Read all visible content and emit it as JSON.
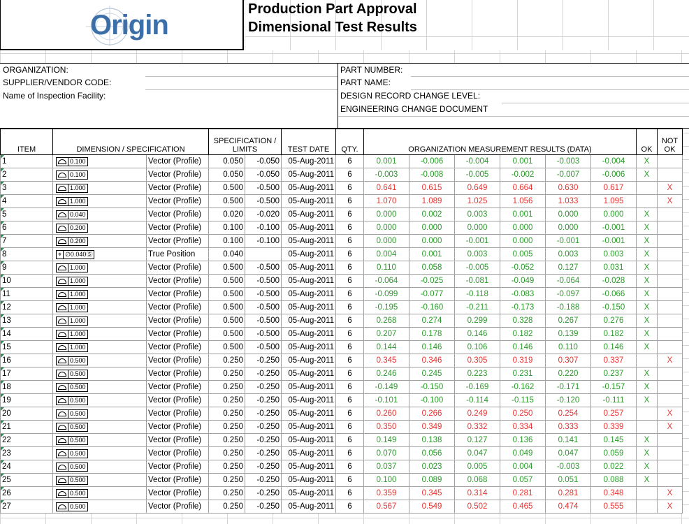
{
  "header": {
    "logo_text": "Origin",
    "title_line1": "Production Part Approval",
    "title_line2": "Dimensional Test Results"
  },
  "info": {
    "organization": "ORGANIZATION:",
    "supplier_code": "SUPPLIER/VENDOR CODE:",
    "inspection_facility": "Name of Inspection Facility:",
    "part_number": "PART NUMBER:",
    "part_name": "PART NAME:",
    "design_record": "DESIGN RECORD CHANGE LEVEL:",
    "eng_change": "ENGINEERING CHANGE DOCUMENT"
  },
  "columns": {
    "item": "ITEM",
    "dimension": "DIMENSION / SPECIFICATION",
    "spec_limits_1": "SPECIFICATION /",
    "spec_limits_2": "LIMITS",
    "test_date": "TEST DATE",
    "qty": "QTY.",
    "results": "ORGANIZATION MEASUREMENT RESULTS (DATA)",
    "ok": "OK",
    "not_ok_1": "NOT",
    "not_ok_2": "OK"
  },
  "colors": {
    "pass": "#2a9a2a",
    "fail": "#e8322f"
  },
  "rows": [
    {
      "item": "1",
      "tol": "0.100",
      "type": "profile",
      "desc": "Vector (Profile)",
      "upper": "0.050",
      "lower": "-0.050",
      "date": "05-Aug-2011",
      "qty": "6",
      "data": [
        "0.001",
        "-0.006",
        "-0.004",
        "0.001",
        "-0.003",
        "-0.004"
      ],
      "pass": true
    },
    {
      "item": "2",
      "tol": "0.100",
      "type": "profile",
      "desc": "Vector (Profile)",
      "upper": "0.050",
      "lower": "-0.050",
      "date": "05-Aug-2011",
      "qty": "6",
      "data": [
        "-0.003",
        "-0.008",
        "-0.005",
        "-0.002",
        "-0.007",
        "-0.006"
      ],
      "pass": true
    },
    {
      "item": "3",
      "tol": "1.000",
      "type": "profile",
      "desc": "Vector (Profile)",
      "upper": "0.500",
      "lower": "-0.500",
      "date": "05-Aug-2011",
      "qty": "6",
      "data": [
        "0.641",
        "0.615",
        "0.649",
        "0.664",
        "0.630",
        "0.617"
      ],
      "pass": false
    },
    {
      "item": "4",
      "tol": "1.000",
      "type": "profile",
      "desc": "Vector (Profile)",
      "upper": "0.500",
      "lower": "-0.500",
      "date": "05-Aug-2011",
      "qty": "6",
      "data": [
        "1.070",
        "1.089",
        "1.025",
        "1.056",
        "1.033",
        "1.095"
      ],
      "pass": false
    },
    {
      "item": "5",
      "tol": "0.040",
      "type": "profile",
      "desc": "Vector (Profile)",
      "upper": "0.020",
      "lower": "-0.020",
      "date": "05-Aug-2011",
      "qty": "6",
      "data": [
        "0.000",
        "0.002",
        "0.003",
        "0.001",
        "0.000",
        "0.000"
      ],
      "pass": true
    },
    {
      "item": "6",
      "tol": "0.200",
      "type": "profile",
      "desc": "Vector (Profile)",
      "upper": "0.100",
      "lower": "-0.100",
      "date": "05-Aug-2011",
      "qty": "6",
      "data": [
        "0.000",
        "0.000",
        "0.000",
        "0.000",
        "0.000",
        "-0.001"
      ],
      "pass": true
    },
    {
      "item": "7",
      "tol": "0.200",
      "type": "profile",
      "desc": "Vector (Profile)",
      "upper": "0.100",
      "lower": "-0.100",
      "date": "05-Aug-2011",
      "qty": "6",
      "data": [
        "0.000",
        "0.000",
        "-0.001",
        "0.000",
        "-0.001",
        "-0.001"
      ],
      "pass": true
    },
    {
      "item": "8",
      "tol": "∅0.040Ⓢ",
      "type": "position",
      "desc": "True Position",
      "upper": "0.040",
      "lower": "",
      "date": "05-Aug-2011",
      "qty": "6",
      "data": [
        "0.004",
        "0.001",
        "0.003",
        "0.005",
        "0.003",
        "0.003"
      ],
      "pass": true
    },
    {
      "item": "9",
      "tol": "1.000",
      "type": "profile",
      "desc": "Vector (Profile)",
      "upper": "0.500",
      "lower": "-0.500",
      "date": "05-Aug-2011",
      "qty": "6",
      "data": [
        "0.110",
        "0.058",
        "-0.005",
        "-0.052",
        "0.127",
        "0.031"
      ],
      "pass": true
    },
    {
      "item": "10",
      "tol": "1.000",
      "type": "profile",
      "desc": "Vector (Profile)",
      "upper": "0.500",
      "lower": "-0.500",
      "date": "05-Aug-2011",
      "qty": "6",
      "data": [
        "-0.064",
        "-0.025",
        "-0.081",
        "-0.049",
        "-0.064",
        "-0.028"
      ],
      "pass": true
    },
    {
      "item": "11",
      "tol": "1.000",
      "type": "profile",
      "desc": "Vector (Profile)",
      "upper": "0.500",
      "lower": "-0.500",
      "date": "05-Aug-2011",
      "qty": "6",
      "data": [
        "-0.099",
        "-0.077",
        "-0.118",
        "-0.083",
        "-0.097",
        "-0.066"
      ],
      "pass": true
    },
    {
      "item": "12",
      "tol": "1.000",
      "type": "profile",
      "desc": "Vector (Profile)",
      "upper": "0.500",
      "lower": "-0.500",
      "date": "05-Aug-2011",
      "qty": "6",
      "data": [
        "-0.195",
        "-0.160",
        "-0.211",
        "-0.173",
        "-0.188",
        "-0.150"
      ],
      "pass": true
    },
    {
      "item": "13",
      "tol": "1.000",
      "type": "profile",
      "desc": "Vector (Profile)",
      "upper": "0.500",
      "lower": "-0.500",
      "date": "05-Aug-2011",
      "qty": "6",
      "data": [
        "0.268",
        "0.274",
        "0.299",
        "0.328",
        "0.267",
        "0.276"
      ],
      "pass": true
    },
    {
      "item": "14",
      "tol": "1.000",
      "type": "profile",
      "desc": "Vector (Profile)",
      "upper": "0.500",
      "lower": "-0.500",
      "date": "05-Aug-2011",
      "qty": "6",
      "data": [
        "0.207",
        "0.178",
        "0.146",
        "0.182",
        "0.139",
        "0.182"
      ],
      "pass": true
    },
    {
      "item": "15",
      "tol": "1.000",
      "type": "profile",
      "desc": "Vector (Profile)",
      "upper": "0.500",
      "lower": "-0.500",
      "date": "05-Aug-2011",
      "qty": "6",
      "data": [
        "0.144",
        "0.146",
        "0.106",
        "0.146",
        "0.110",
        "0.146"
      ],
      "pass": true
    },
    {
      "item": "16",
      "tol": "0.500",
      "type": "profile",
      "desc": "Vector (Profile)",
      "upper": "0.250",
      "lower": "-0.250",
      "date": "05-Aug-2011",
      "qty": "6",
      "data": [
        "0.345",
        "0.346",
        "0.305",
        "0.319",
        "0.307",
        "0.337"
      ],
      "pass": false
    },
    {
      "item": "17",
      "tol": "0.500",
      "type": "profile",
      "desc": "Vector (Profile)",
      "upper": "0.250",
      "lower": "-0.250",
      "date": "05-Aug-2011",
      "qty": "6",
      "data": [
        "0.246",
        "0.245",
        "0.223",
        "0.231",
        "0.220",
        "0.237"
      ],
      "pass": true
    },
    {
      "item": "18",
      "tol": "0.500",
      "type": "profile",
      "desc": "Vector (Profile)",
      "upper": "0.250",
      "lower": "-0.250",
      "date": "05-Aug-2011",
      "qty": "6",
      "data": [
        "-0.149",
        "-0.150",
        "-0.169",
        "-0.162",
        "-0.171",
        "-0.157"
      ],
      "pass": true
    },
    {
      "item": "19",
      "tol": "0.500",
      "type": "profile",
      "desc": "Vector (Profile)",
      "upper": "0.250",
      "lower": "-0.250",
      "date": "05-Aug-2011",
      "qty": "6",
      "data": [
        "-0.101",
        "-0.100",
        "-0.114",
        "-0.115",
        "-0.120",
        "-0.111"
      ],
      "pass": true
    },
    {
      "item": "20",
      "tol": "0.500",
      "type": "profile",
      "desc": "Vector (Profile)",
      "upper": "0.250",
      "lower": "-0.250",
      "date": "05-Aug-2011",
      "qty": "6",
      "data": [
        "0.260",
        "0.266",
        "0.249",
        "0.250",
        "0.254",
        "0.257"
      ],
      "pass": false
    },
    {
      "item": "21",
      "tol": "0.500",
      "type": "profile",
      "desc": "Vector (Profile)",
      "upper": "0.250",
      "lower": "-0.250",
      "date": "05-Aug-2011",
      "qty": "6",
      "data": [
        "0.350",
        "0.349",
        "0.332",
        "0.334",
        "0.333",
        "0.339"
      ],
      "pass": false
    },
    {
      "item": "22",
      "tol": "0.500",
      "type": "profile",
      "desc": "Vector (Profile)",
      "upper": "0.250",
      "lower": "-0.250",
      "date": "05-Aug-2011",
      "qty": "6",
      "data": [
        "0.149",
        "0.138",
        "0.127",
        "0.136",
        "0.141",
        "0.145"
      ],
      "pass": true
    },
    {
      "item": "23",
      "tol": "0.500",
      "type": "profile",
      "desc": "Vector (Profile)",
      "upper": "0.250",
      "lower": "-0.250",
      "date": "05-Aug-2011",
      "qty": "6",
      "data": [
        "0.070",
        "0.056",
        "0.047",
        "0.049",
        "0.047",
        "0.059"
      ],
      "pass": true
    },
    {
      "item": "24",
      "tol": "0.500",
      "type": "profile",
      "desc": "Vector (Profile)",
      "upper": "0.250",
      "lower": "-0.250",
      "date": "05-Aug-2011",
      "qty": "6",
      "data": [
        "0.037",
        "0.023",
        "0.005",
        "0.004",
        "-0.003",
        "0.022"
      ],
      "pass": true
    },
    {
      "item": "25",
      "tol": "0.500",
      "type": "profile",
      "desc": "Vector (Profile)",
      "upper": "0.250",
      "lower": "-0.250",
      "date": "05-Aug-2011",
      "qty": "6",
      "data": [
        "0.100",
        "0.089",
        "0.068",
        "0.057",
        "0.051",
        "0.088"
      ],
      "pass": true
    },
    {
      "item": "26",
      "tol": "0.500",
      "type": "profile",
      "desc": "Vector (Profile)",
      "upper": "0.250",
      "lower": "-0.250",
      "date": "05-Aug-2011",
      "qty": "6",
      "data": [
        "0.359",
        "0.345",
        "0.314",
        "0.281",
        "0.281",
        "0.348"
      ],
      "pass": false
    },
    {
      "item": "27",
      "tol": "0.500",
      "type": "profile",
      "desc": "Vector (Profile)",
      "upper": "0.250",
      "lower": "-0.250",
      "date": "05-Aug-2011",
      "qty": "6",
      "data": [
        "0.567",
        "0.549",
        "0.502",
        "0.465",
        "0.474",
        "0.555"
      ],
      "pass": false
    }
  ],
  "marks": {
    "ok": "X",
    "not_ok": "X"
  }
}
